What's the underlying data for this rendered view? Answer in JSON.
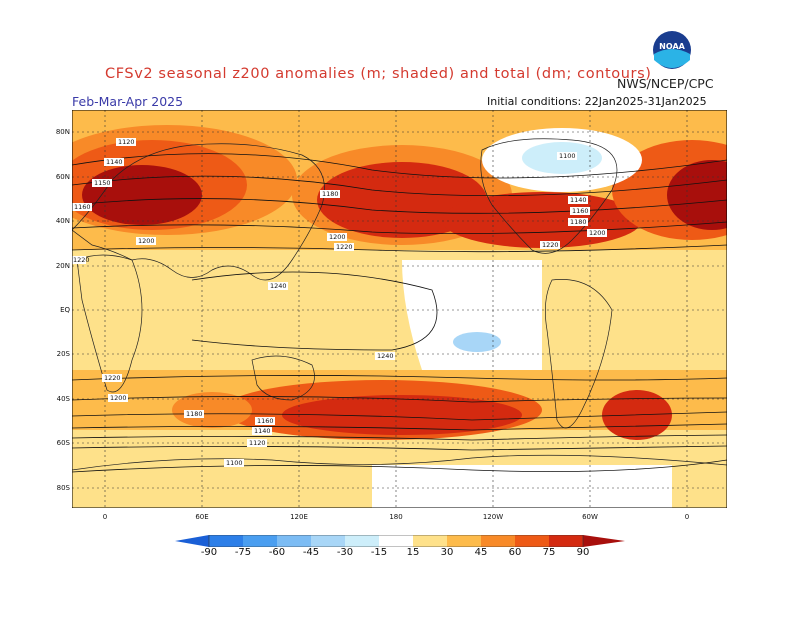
{
  "header": {
    "title": "CFSv2 seasonal z200 anomalies (m; shaded) and total (dm; contours)",
    "org": "NWS/NCEP/CPC",
    "season": "Feb-Mar-Apr 2025",
    "init_conditions": "Initial conditions: 22Jan2025-31Jan2025",
    "logo_text": "NOAA"
  },
  "map": {
    "lat_labels": [
      "80N",
      "60N",
      "40N",
      "20N",
      "EQ",
      "20S",
      "40S",
      "60S",
      "80S"
    ],
    "lon_labels": [
      "0",
      "60E",
      "120E",
      "180",
      "120W",
      "60W",
      "0"
    ],
    "contour_labels": [
      "1120",
      "1140",
      "1150",
      "1160",
      "1200",
      "1220",
      "1240",
      "1100",
      "1180",
      "1200",
      "1220",
      "1140",
      "1160",
      "1180",
      "1200",
      "1220",
      "1240",
      "1220",
      "1200",
      "1180",
      "1160",
      "1140",
      "1120",
      "1100"
    ]
  },
  "colorbar": {
    "labels": [
      "-90",
      "-75",
      "-60",
      "-45",
      "-30",
      "-15",
      "15",
      "30",
      "45",
      "60",
      "75",
      "90"
    ],
    "colors": [
      "#1a5fd6",
      "#2d7fe8",
      "#4a9ef0",
      "#7cbcf4",
      "#a8d6f7",
      "#cdeefa",
      "#ffffff",
      "#fee18a",
      "#fdbb4b",
      "#f88a28",
      "#ee5a16",
      "#d42a10",
      "#a80f0c"
    ]
  }
}
